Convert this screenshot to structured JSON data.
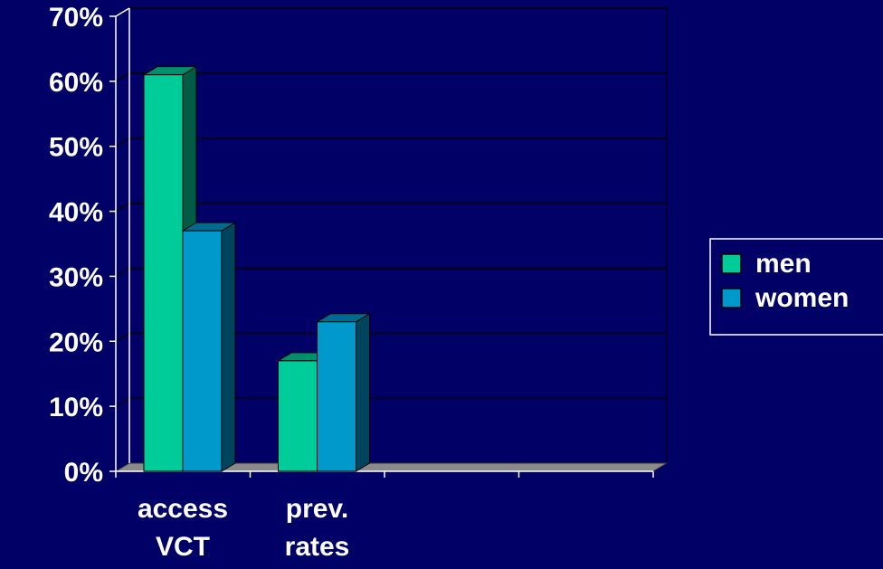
{
  "chart_data": {
    "type": "bar",
    "categories": [
      "access VCT",
      "prev. rates"
    ],
    "category_lines": [
      [
        "access",
        "VCT"
      ],
      [
        "prev.",
        "rates"
      ]
    ],
    "slots": 4,
    "series": [
      {
        "name": "men",
        "values": [
          61,
          17
        ],
        "color": "#00cc99"
      },
      {
        "name": "women",
        "values": [
          37,
          23
        ],
        "color": "#0099cc"
      }
    ],
    "ylim": [
      0,
      70
    ],
    "yticks": [
      "0%",
      "10%",
      "20%",
      "30%",
      "40%",
      "50%",
      "60%",
      "70%"
    ],
    "grid": true,
    "legend": "right",
    "colors": {
      "background": "#000066",
      "floor": "#8a8a8a",
      "axis": "#ffffff"
    }
  }
}
